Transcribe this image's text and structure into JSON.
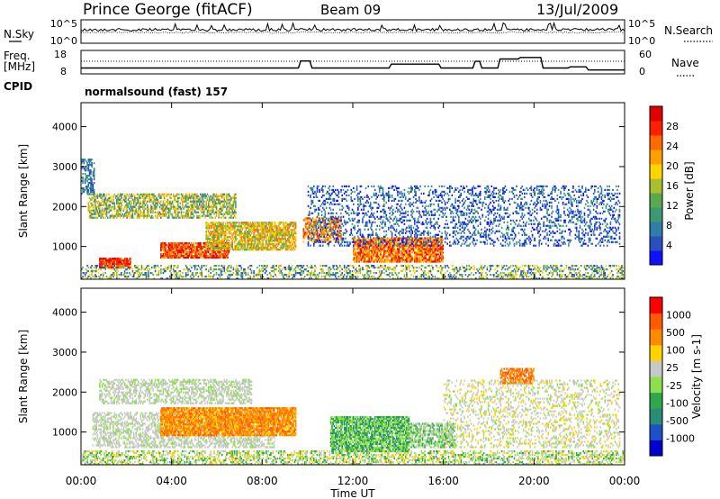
{
  "header": {
    "station": "Prince George (fitACF)",
    "beam": "Beam 09",
    "date": "13/Jul/2009"
  },
  "left_labels": {
    "nsky": "N.Sky",
    "freq_line1": "Freq.",
    "freq_line2": "[MHz]",
    "cpid": "CPID"
  },
  "right_labels": {
    "nsearch": "N.Search",
    "nave": "Nave"
  },
  "cpid_text": "normalsound (fast) 157",
  "colors": {
    "power_scale": [
      "#1010ff",
      "#2a50c0",
      "#2e7ea8",
      "#3c9a70",
      "#5aa850",
      "#a8c030",
      "#ffd400",
      "#ffa000",
      "#ff6a00",
      "#ff2000",
      "#e00000"
    ],
    "velocity_scale": [
      "#0000d0",
      "#1e50c8",
      "#2a8c78",
      "#2ea84a",
      "#8ce04c",
      "#c8c8c8",
      "#ffd200",
      "#ff8a00",
      "#ff5a00",
      "#ff0000"
    ]
  },
  "chart_data": [
    {
      "type": "line",
      "name": "noise-panel",
      "yticks_left": [
        "10^5",
        "10^0"
      ],
      "yticks_right": [
        "10^5",
        "10^0"
      ]
    },
    {
      "type": "line",
      "name": "freq-nave-panel",
      "yticks_left": [
        "18",
        "8"
      ],
      "yticks_right": [
        "60",
        "0"
      ],
      "nave_steps": [
        [
          0,
          15
        ],
        [
          9.6,
          15
        ],
        [
          9.7,
          33
        ],
        [
          10.1,
          33
        ],
        [
          10.2,
          15
        ],
        [
          13.6,
          15
        ],
        [
          13.7,
          25
        ],
        [
          15.8,
          25
        ],
        [
          15.9,
          15
        ],
        [
          17.3,
          15
        ],
        [
          17.4,
          32
        ],
        [
          17.6,
          32
        ],
        [
          17.7,
          15
        ],
        [
          18.4,
          15
        ],
        [
          18.5,
          38
        ],
        [
          19.3,
          38
        ],
        [
          19.4,
          42
        ],
        [
          20.3,
          42
        ],
        [
          20.4,
          15
        ],
        [
          21.5,
          15
        ],
        [
          21.6,
          18
        ],
        [
          22.3,
          18
        ],
        [
          22.4,
          10
        ],
        [
          24,
          10
        ]
      ]
    },
    {
      "type": "heatmap",
      "name": "power-panel",
      "xlim": [
        0,
        24
      ],
      "ylim": [
        180,
        4600
      ],
      "ylabel": "Slant Range [km]",
      "yticks": [
        1000,
        2000,
        3000,
        4000
      ],
      "colorbar_label": "Power [dB]",
      "colorbar_ticks": [
        "4",
        "8",
        "12",
        "16",
        "20",
        "24",
        "28"
      ]
    },
    {
      "type": "heatmap",
      "name": "velocity-panel",
      "xlim": [
        0,
        24
      ],
      "ylim": [
        180,
        4600
      ],
      "ylabel": "Slant Range [km]",
      "yticks": [
        1000,
        2000,
        3000,
        4000
      ],
      "xticks": [
        "00:00",
        "04:00",
        "08:00",
        "12:00",
        "16:00",
        "20:00",
        "00:00"
      ],
      "xlabel": "Time UT",
      "colorbar_label": "Velocity [m s-1]",
      "colorbar_ticks": [
        "1000",
        "500",
        "100",
        "25",
        "-25",
        "-100",
        "-500",
        "-1000"
      ]
    }
  ]
}
